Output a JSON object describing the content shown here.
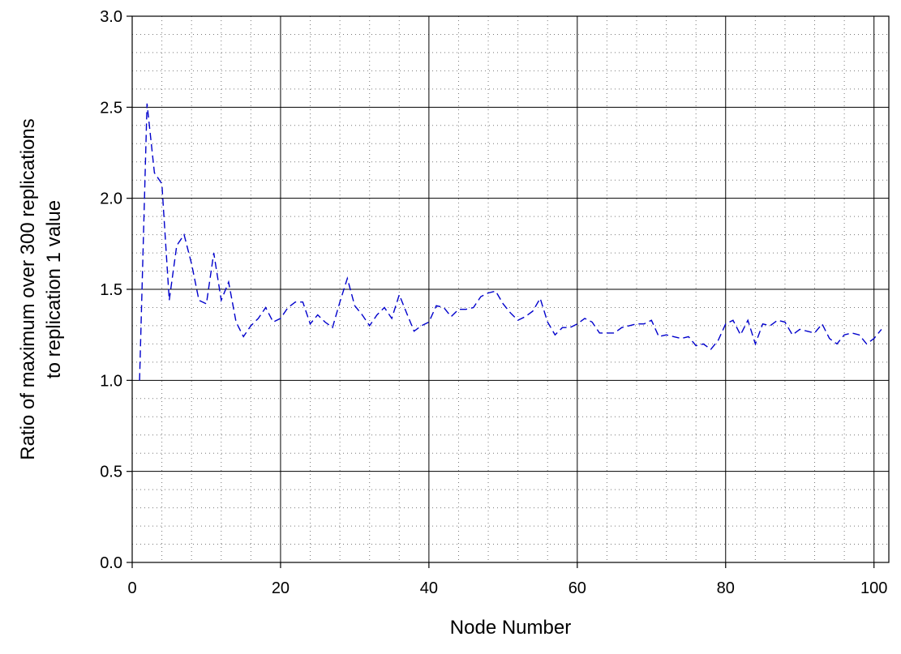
{
  "chart_data": {
    "type": "line",
    "title": "",
    "xlabel": "Node Number",
    "ylabel_lines": [
      "Ratio of maximum over 300 replications",
      "to replication 1 value"
    ],
    "xlim": [
      0,
      102
    ],
    "ylim": [
      0,
      3
    ],
    "x_ticks": [
      0,
      20,
      40,
      60,
      80,
      100
    ],
    "x_tick_labels": [
      "0",
      "20",
      "40",
      "60",
      "80",
      "100"
    ],
    "y_ticks": [
      0,
      0.5,
      1,
      1.5,
      2,
      2.5,
      3
    ],
    "y_tick_labels": [
      "0.0",
      "0.5",
      "1.0",
      "1.5",
      "2.0",
      "2.5",
      "3.0"
    ],
    "grid": {
      "major": true,
      "minor": true,
      "minor_x_step": 4,
      "minor_y_step": 0.1
    },
    "legend": "none",
    "series": [
      {
        "color": "#0000cc",
        "dash": "dashed",
        "x": [
          1,
          2,
          3,
          4,
          5,
          6,
          7,
          8,
          9,
          10,
          11,
          12,
          13,
          14,
          15,
          16,
          17,
          18,
          19,
          20,
          21,
          22,
          23,
          24,
          25,
          26,
          27,
          28,
          29,
          30,
          31,
          32,
          33,
          34,
          35,
          36,
          37,
          38,
          39,
          40,
          41,
          42,
          43,
          44,
          45,
          46,
          47,
          48,
          49,
          50,
          51,
          52,
          53,
          54,
          55,
          56,
          57,
          58,
          59,
          60,
          61,
          62,
          63,
          64,
          65,
          66,
          67,
          68,
          69,
          70,
          71,
          72,
          73,
          74,
          75,
          76,
          77,
          78,
          79,
          80,
          81,
          82,
          83,
          84,
          85,
          86,
          87,
          88,
          89,
          90,
          91,
          92,
          93,
          94,
          95,
          96,
          97,
          98,
          99,
          100,
          101
        ],
        "y": [
          1.0,
          2.52,
          2.14,
          2.08,
          1.44,
          1.74,
          1.8,
          1.64,
          1.44,
          1.42,
          1.7,
          1.44,
          1.54,
          1.32,
          1.24,
          1.3,
          1.34,
          1.4,
          1.32,
          1.34,
          1.4,
          1.43,
          1.43,
          1.31,
          1.36,
          1.32,
          1.29,
          1.43,
          1.56,
          1.41,
          1.36,
          1.3,
          1.36,
          1.4,
          1.34,
          1.47,
          1.37,
          1.27,
          1.3,
          1.32,
          1.41,
          1.4,
          1.35,
          1.39,
          1.39,
          1.4,
          1.46,
          1.48,
          1.49,
          1.42,
          1.37,
          1.33,
          1.35,
          1.38,
          1.45,
          1.32,
          1.25,
          1.29,
          1.29,
          1.31,
          1.34,
          1.32,
          1.26,
          1.26,
          1.26,
          1.29,
          1.3,
          1.31,
          1.31,
          1.33,
          1.24,
          1.25,
          1.24,
          1.23,
          1.24,
          1.19,
          1.2,
          1.17,
          1.22,
          1.31,
          1.33,
          1.25,
          1.33,
          1.2,
          1.31,
          1.3,
          1.33,
          1.32,
          1.25,
          1.28,
          1.27,
          1.26,
          1.31,
          1.23,
          1.2,
          1.25,
          1.26,
          1.25,
          1.2,
          1.23,
          1.28
        ]
      }
    ]
  }
}
